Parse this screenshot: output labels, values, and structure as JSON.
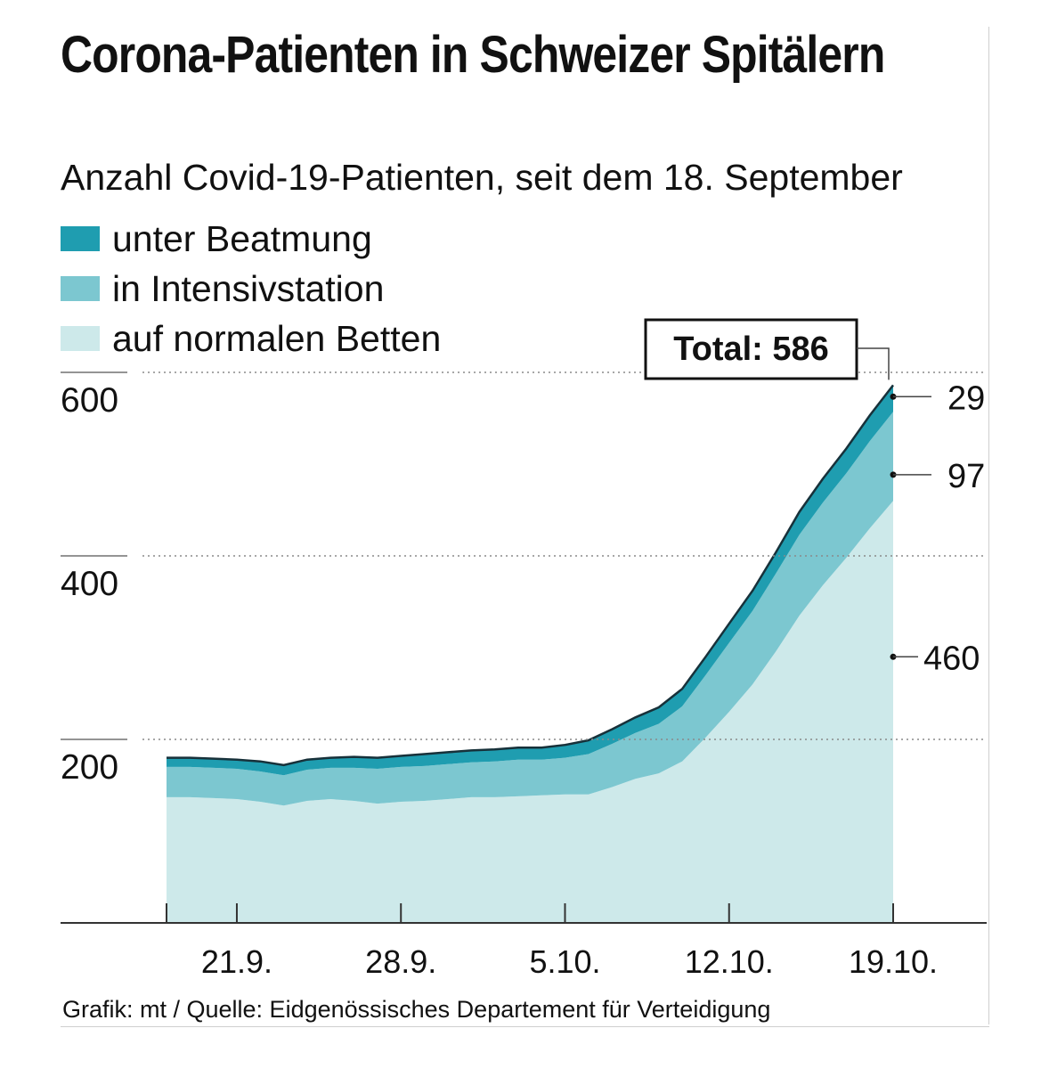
{
  "title": "Corona-Patienten in Schweizer Spitälern",
  "subtitle": "Anzahl Covid-19-Patienten, seit dem 18. September",
  "source": "Grafik: mt / Quelle: Eidgenössisches Departement für Verteidigung",
  "colors": {
    "beatmung": "#1f9db0",
    "intensiv": "#7cc7d0",
    "normal": "#cde9ea",
    "outline": "#17313a"
  },
  "chart_data": {
    "type": "area",
    "stacked": true,
    "x": [
      "18.9.",
      "19.9.",
      "20.9.",
      "21.9.",
      "22.9.",
      "23.9.",
      "24.9.",
      "25.9.",
      "26.9.",
      "27.9.",
      "28.9.",
      "29.9.",
      "30.9.",
      "1.10.",
      "2.10.",
      "3.10.",
      "4.10.",
      "5.10.",
      "6.10.",
      "7.10.",
      "8.10.",
      "9.10.",
      "10.10.",
      "11.10.",
      "12.10.",
      "13.10.",
      "14.10.",
      "15.10.",
      "16.10.",
      "17.10.",
      "18.10.",
      "19.10."
    ],
    "series": [
      {
        "name": "auf normalen Betten",
        "color": "#cde9ea",
        "values": [
          137,
          137,
          136,
          135,
          132,
          128,
          133,
          135,
          133,
          130,
          132,
          133,
          135,
          137,
          137,
          138,
          139,
          140,
          140,
          148,
          157,
          163,
          176,
          202,
          230,
          260,
          296,
          335,
          368,
          398,
          430,
          460
        ]
      },
      {
        "name": "in Intensivstation",
        "color": "#7cc7d0",
        "values": [
          33,
          33,
          33,
          33,
          33,
          33,
          34,
          34,
          36,
          38,
          38,
          38,
          38,
          38,
          39,
          40,
          39,
          40,
          44,
          47,
          50,
          54,
          60,
          68,
          75,
          80,
          85,
          88,
          90,
          92,
          95,
          97
        ]
      },
      {
        "name": "unter Beatmung",
        "color": "#1f9db0",
        "values": [
          10,
          10,
          10,
          10,
          11,
          11,
          11,
          11,
          12,
          12,
          12,
          13,
          13,
          13,
          13,
          13,
          13,
          14,
          15,
          16,
          17,
          18,
          19,
          20,
          21,
          22,
          23,
          25,
          26,
          27,
          28,
          29
        ]
      }
    ],
    "yticks": [
      200,
      400,
      600
    ],
    "ylim": [
      0,
      600
    ],
    "xtick_labels": [
      "21.9.",
      "28.9.",
      "5.10.",
      "12.10.",
      "19.10."
    ],
    "xtick_positions": [
      "21.9.",
      "28.9.",
      "5.10.",
      "12.10.",
      "19.10."
    ],
    "annotations": {
      "total_label": "Total: 586",
      "end_labels": [
        {
          "series": "unter Beatmung",
          "text": "29"
        },
        {
          "series": "in Intensivstation",
          "text": "97"
        },
        {
          "series": "auf normalen Betten",
          "text": "460"
        }
      ]
    }
  }
}
